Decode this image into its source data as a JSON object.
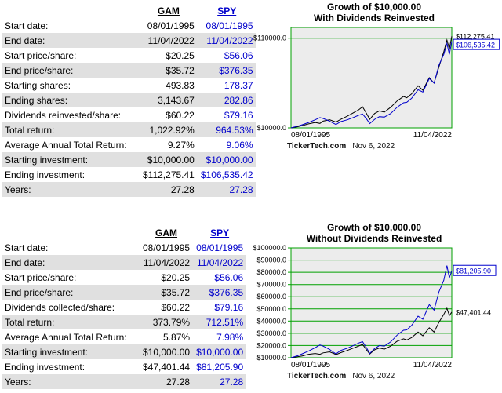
{
  "colors": {
    "spy_blue": "#0000cc",
    "gam_black": "#000000",
    "row_stripe": "#e0e0e0",
    "grid_green": "#00a000",
    "plot_bg": "#ececec"
  },
  "tables": [
    {
      "headers": {
        "gam": "GAM",
        "spy": "SPY"
      },
      "rows": [
        {
          "label": "Start date:",
          "gam": "08/01/1995",
          "spy": "08/01/1995"
        },
        {
          "label": "End date:",
          "gam": "11/04/2022",
          "spy": "11/04/2022"
        },
        {
          "label": "Start price/share:",
          "gam": "$20.25",
          "spy": "$56.06"
        },
        {
          "label": "End price/share:",
          "gam": "$35.72",
          "spy": "$376.35"
        },
        {
          "label": "Starting shares:",
          "gam": "493.83",
          "spy": "178.37"
        },
        {
          "label": "Ending shares:",
          "gam": "3,143.67",
          "spy": "282.86"
        },
        {
          "label": "Dividends reinvested/share:",
          "gam": "$60.22",
          "spy": "$79.16"
        },
        {
          "label": "Total return:",
          "gam": "1,022.92%",
          "spy": "964.53%"
        },
        {
          "label": "Average Annual Total Return:",
          "gam": "9.27%",
          "spy": "9.06%"
        },
        {
          "label": "Starting investment:",
          "gam": "$10,000.00",
          "spy": "$10,000.00"
        },
        {
          "label": "Ending investment:",
          "gam": "$112,275.41",
          "spy": "$106,535.42"
        },
        {
          "label": "Years:",
          "gam": "27.28",
          "spy": "27.28"
        }
      ]
    },
    {
      "headers": {
        "gam": "GAM",
        "spy": "SPY"
      },
      "rows": [
        {
          "label": "Start date:",
          "gam": "08/01/1995",
          "spy": "08/01/1995"
        },
        {
          "label": "End date:",
          "gam": "11/04/2022",
          "spy": "11/04/2022"
        },
        {
          "label": "Start price/share:",
          "gam": "$20.25",
          "spy": "$56.06"
        },
        {
          "label": "End price/share:",
          "gam": "$35.72",
          "spy": "$376.35"
        },
        {
          "label": "Dividends collected/share:",
          "gam": "$60.22",
          "spy": "$79.16"
        },
        {
          "label": "Total return:",
          "gam": "373.79%",
          "spy": "712.51%"
        },
        {
          "label": "Average Annual Total Return:",
          "gam": "5.87%",
          "spy": "7.98%"
        },
        {
          "label": "Starting investment:",
          "gam": "$10,000.00",
          "spy": "$10,000.00"
        },
        {
          "label": "Ending investment:",
          "gam": "$47,401.44",
          "spy": "$81,205.90"
        },
        {
          "label": "Years:",
          "gam": "27.28",
          "spy": "27.28"
        }
      ]
    }
  ],
  "chart_data": [
    {
      "type": "line",
      "title": "Growth of $10,000.00",
      "subtitle": "With Dividends Reinvested",
      "footer_brand": "TickerTech.com",
      "footer_date": "Nov 6, 2022",
      "x_axis": {
        "start_label": "08/01/1995",
        "end_label": "11/04/2022"
      },
      "ylim": [
        10000,
        122000
      ],
      "grid": true,
      "legend_position": "none",
      "yticks": [
        {
          "value": 110000,
          "label": "$110000.0"
        },
        {
          "value": 10000,
          "label": "$10000.0"
        }
      ],
      "x": [
        0,
        0.04,
        0.07,
        0.11,
        0.15,
        0.18,
        0.2,
        0.24,
        0.26,
        0.28,
        0.31,
        0.35,
        0.38,
        0.42,
        0.445,
        0.47,
        0.49,
        0.52,
        0.55,
        0.58,
        0.62,
        0.66,
        0.7,
        0.72,
        0.75,
        0.79,
        0.82,
        0.86,
        0.89,
        0.92,
        0.95,
        0.97,
        0.985,
        1
      ],
      "series": [
        {
          "name": "GAM",
          "color": "#000000",
          "end_label": "$112,275.41",
          "end_label_boxed": false,
          "values": [
            10000,
            11200,
            12500,
            14500,
            16000,
            15000,
            17500,
            19000,
            17800,
            16500,
            19500,
            23000,
            26000,
            30000,
            33500,
            26000,
            19500,
            26000,
            29000,
            27500,
            33000,
            40000,
            45000,
            43500,
            48000,
            57000,
            52000,
            66000,
            60000,
            78000,
            95000,
            108000,
            98000,
            112275
          ]
        },
        {
          "name": "SPY",
          "color": "#0000cc",
          "end_label": "$106,535.42",
          "end_label_boxed": true,
          "values": [
            10000,
            11800,
            13500,
            16000,
            19000,
            21500,
            20500,
            17500,
            15500,
            13800,
            17000,
            19000,
            21000,
            24000,
            25500,
            20000,
            14800,
            19500,
            22500,
            22000,
            26000,
            33000,
            38000,
            38500,
            43000,
            52500,
            50000,
            65000,
            60000,
            80000,
            92000,
            104000,
            92000,
            106535
          ]
        }
      ]
    },
    {
      "type": "line",
      "title": "Growth of $10,000.00",
      "subtitle": "Without Dividends Reinvested",
      "footer_brand": "TickerTech.com",
      "footer_date": "Nov 6, 2022",
      "x_axis": {
        "start_label": "08/01/1995",
        "end_label": "11/04/2022"
      },
      "ylim": [
        10000,
        100000
      ],
      "grid": true,
      "legend_position": "none",
      "yticks": [
        {
          "value": 100000,
          "label": "$100000.0"
        },
        {
          "value": 90000,
          "label": "$90000.0"
        },
        {
          "value": 80000,
          "label": "$80000.0"
        },
        {
          "value": 70000,
          "label": "$70000.0"
        },
        {
          "value": 60000,
          "label": "$60000.0"
        },
        {
          "value": 50000,
          "label": "$50000.0"
        },
        {
          "value": 40000,
          "label": "$40000.0"
        },
        {
          "value": 30000,
          "label": "$30000.0"
        },
        {
          "value": 20000,
          "label": "$20000.0"
        },
        {
          "value": 10000,
          "label": "$10000.0"
        }
      ],
      "x": [
        0,
        0.04,
        0.07,
        0.11,
        0.15,
        0.18,
        0.2,
        0.24,
        0.26,
        0.28,
        0.31,
        0.35,
        0.38,
        0.42,
        0.445,
        0.47,
        0.49,
        0.52,
        0.55,
        0.58,
        0.62,
        0.66,
        0.7,
        0.72,
        0.75,
        0.79,
        0.82,
        0.86,
        0.89,
        0.92,
        0.95,
        0.97,
        0.985,
        1
      ],
      "series": [
        {
          "name": "GAM",
          "color": "#000000",
          "end_label": "$47,401.44",
          "end_label_boxed": false,
          "values": [
            10000,
            10800,
            11500,
            12800,
            13500,
            12800,
            14000,
            14800,
            13800,
            12500,
            14200,
            16000,
            17500,
            19500,
            21000,
            16500,
            13000,
            16500,
            18000,
            17000,
            19500,
            23500,
            25500,
            24500,
            26500,
            31000,
            28000,
            34500,
            31000,
            39000,
            45500,
            50500,
            44500,
            47401
          ]
        },
        {
          "name": "SPY",
          "color": "#0000cc",
          "end_label": "$81,205.90",
          "end_label_boxed": true,
          "values": [
            10000,
            11600,
            13200,
            15500,
            18200,
            20500,
            19500,
            16800,
            14800,
            13200,
            16000,
            17800,
            19500,
            22000,
            23200,
            18200,
            13500,
            17500,
            20000,
            19500,
            23000,
            28500,
            32500,
            32800,
            36500,
            44000,
            41500,
            53500,
            49000,
            64000,
            73500,
            85500,
            75500,
            81206
          ]
        }
      ]
    }
  ]
}
